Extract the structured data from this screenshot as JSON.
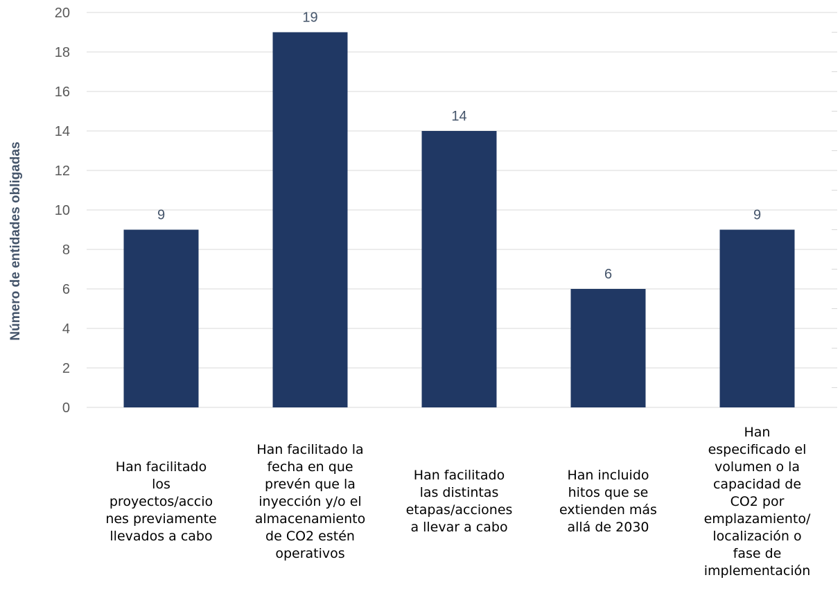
{
  "chart_data": {
    "type": "bar",
    "ylabel": "Número de entidades obligadas",
    "ylim": [
      0,
      20
    ],
    "yticks": [
      0,
      2,
      4,
      6,
      8,
      10,
      12,
      14,
      16,
      18,
      20
    ],
    "grid": true,
    "legend": "none",
    "data_labels": true,
    "colors": {
      "bar": "#203864",
      "grid": "#d9d9d9",
      "tick": "#595959",
      "data_label": "#44546a",
      "axis_title": "#44546a"
    },
    "categories": [
      "Han facilitado los proyectos/acciones previamente llevados a cabo",
      "Han facilitado la fecha en que prevén que la inyección y/o el almacenamiento de CO2 estén operativos",
      "Han facilitado las distintas etapas/acciones a llevar a cabo",
      "Han incluido hitos que se extienden más allá de 2030",
      "Han especificado el volumen o la capacidad de CO2 por emplazamiento/localización o fase de implementación"
    ],
    "category_lines": [
      [
        "Han facilitado",
        "los",
        "proyectos/accio",
        "nes previamente",
        "llevados a cabo"
      ],
      [
        "Han facilitado la",
        "fecha en que",
        "prevén que la",
        "inyección y/o el",
        "almacenamiento",
        "de CO2 estén",
        "operativos"
      ],
      [
        "Han facilitado",
        "las distintas",
        "etapas/acciones",
        "a llevar a cabo"
      ],
      [
        "Han incluido",
        "hitos que se",
        "extienden más",
        "allá de 2030"
      ],
      [
        "Han",
        "especificado el",
        "volumen o la",
        "capacidad de",
        "CO2 por",
        "emplazamiento/",
        "localización o",
        "fase de",
        "implementación"
      ]
    ],
    "values": [
      9,
      19,
      14,
      6,
      9
    ]
  }
}
